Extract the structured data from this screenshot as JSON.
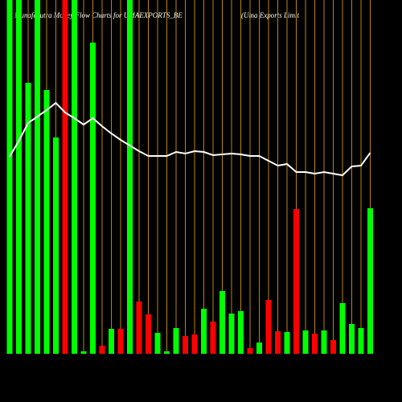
{
  "chart_data": {
    "type": "bar",
    "title": "Munafasutra  Money Flow  Charts for UMAEXPORTS_BE",
    "subtitle": "(Uma  Exports Limit",
    "categories": [
      null,
      null,
      null,
      null,
      null,
      null,
      null,
      null,
      null,
      null,
      null,
      null,
      null,
      null,
      null,
      null,
      null,
      null,
      null,
      null,
      null,
      null,
      null,
      null,
      null,
      null,
      null,
      null,
      null,
      null,
      null,
      null,
      null,
      null,
      null,
      null,
      null,
      null,
      null,
      null
    ],
    "values": [
      440,
      440,
      337,
      440,
      328,
      269,
      440,
      440,
      3,
      387,
      10,
      31,
      31,
      440,
      65,
      49,
      26,
      3,
      32,
      22,
      24,
      56,
      40,
      78,
      50,
      53,
      7,
      14,
      67,
      28,
      27,
      180,
      29,
      25,
      29,
      17,
      63,
      37,
      32,
      181
    ],
    "colors": [
      "#00ff00",
      "#00ff00",
      "#00ff00",
      "#00ff00",
      "#00ff00",
      "#00ff00",
      "#ff0000",
      "#00ff00",
      "#00ff00",
      "#00ff00",
      "#ff0000",
      "#00ff00",
      "#ff0000",
      "#00ff00",
      "#ff0000",
      "#ff0000",
      "#00ff00",
      "#00ff00",
      "#00ff00",
      "#ff0000",
      "#ff0000",
      "#00ff00",
      "#ff0000",
      "#00ff00",
      "#00ff00",
      "#00ff00",
      "#ff0000",
      "#00ff00",
      "#ff0000",
      "#ff0000",
      "#00ff00",
      "#ff0000",
      "#00ff00",
      "#ff0000",
      "#00ff00",
      "#ff0000",
      "#00ff00",
      "#00ff00",
      "#00ff00",
      "#00ff00"
    ],
    "line_values": [
      245,
      265,
      287,
      295,
      303,
      312,
      300,
      293,
      285,
      293,
      283,
      274,
      266,
      259,
      252,
      246,
      246,
      246,
      251,
      249,
      252,
      251,
      247,
      248,
      249,
      248,
      246,
      246,
      240,
      234,
      236,
      226,
      226,
      224,
      226,
      224,
      222,
      233,
      234,
      250
    ],
    "line_color": "#ffffff",
    "ylim": [
      0,
      440
    ]
  }
}
